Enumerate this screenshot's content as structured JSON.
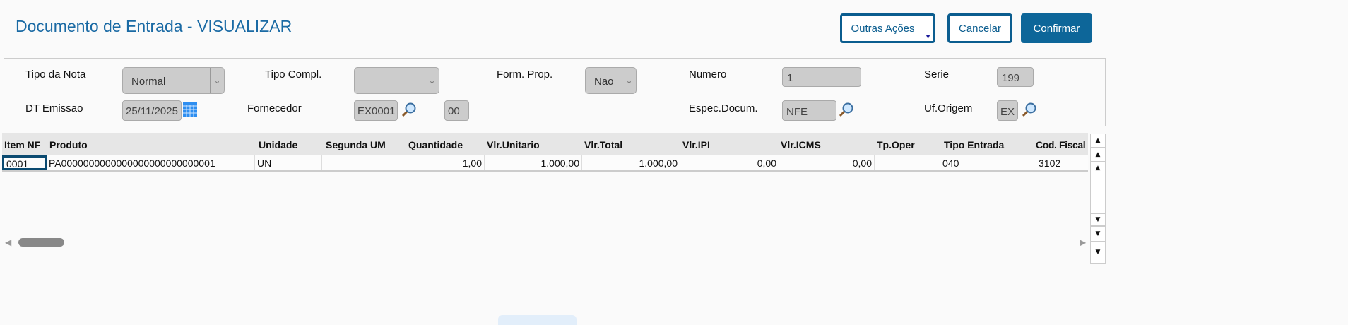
{
  "header": {
    "title": "Documento de Entrada - VISUALIZAR",
    "buttons": {
      "other": "Outras Ações",
      "cancel": "Cancelar",
      "confirm": "Confirmar"
    }
  },
  "form": {
    "tipo_nota": {
      "label": "Tipo da Nota",
      "value": "Normal"
    },
    "tipo_compl": {
      "label": "Tipo Compl.",
      "value": ""
    },
    "form_prop": {
      "label": "Form. Prop.",
      "value": "Nao"
    },
    "numero": {
      "label": "Numero",
      "value": "1"
    },
    "serie": {
      "label": "Serie",
      "value": "199"
    },
    "dt_emissao": {
      "label": "DT Emissao",
      "value": "25/11/2025"
    },
    "fornecedor": {
      "label": "Fornecedor",
      "value": "EX0001",
      "loja": "00"
    },
    "espec": {
      "label": "Espec.Docum.",
      "value": "NFE"
    },
    "uf": {
      "label": "Uf.Origem",
      "value": "EX"
    }
  },
  "grid": {
    "columns": [
      "Item NF",
      "Produto",
      "Unidade",
      "Segunda UM",
      "Quantidade",
      "Vlr.Unitario",
      "Vlr.Total",
      "Vlr.IPI",
      "Vlr.ICMS",
      "Tp.Oper",
      "Tipo Entrada",
      "Cod. Fiscal"
    ],
    "rows": [
      [
        "0001",
        "PA0000000000000000000000000001",
        "UN",
        "",
        "1,00",
        "1.000,00",
        "1.000,00",
        "0,00",
        "0,00",
        "",
        "040",
        "3102"
      ]
    ]
  }
}
